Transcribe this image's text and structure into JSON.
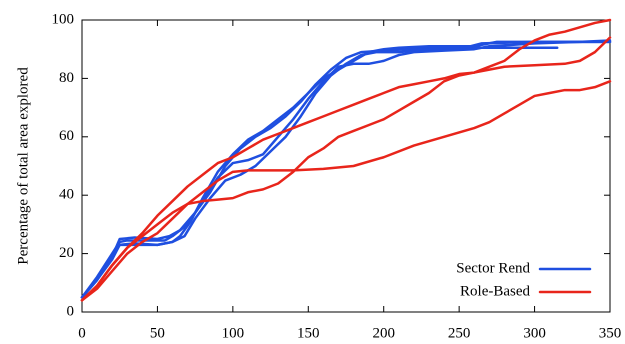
{
  "chart_data": {
    "type": "line",
    "title": "",
    "xlabel": "",
    "ylabel": "Percentage of total area explored",
    "xlim": [
      0,
      350
    ],
    "ylim": [
      0,
      100
    ],
    "xticks": [
      0,
      50,
      100,
      150,
      200,
      250,
      300,
      350
    ],
    "yticks": [
      0,
      20,
      40,
      60,
      80,
      100
    ],
    "grid": false,
    "legend_position": "bottom-right",
    "legend": [
      {
        "label": "Sector Rend",
        "color": "#1f4fe0"
      },
      {
        "label": "Role-Based",
        "color": "#e8251b"
      }
    ],
    "series": [
      {
        "group": "Sector Rend",
        "color": "#1f4fe0",
        "points": [
          [
            0,
            5
          ],
          [
            10,
            12
          ],
          [
            20,
            20
          ],
          [
            25,
            24
          ],
          [
            30,
            24.5
          ],
          [
            40,
            24.5
          ],
          [
            55,
            24.5
          ],
          [
            60,
            26
          ],
          [
            70,
            30
          ],
          [
            80,
            38
          ],
          [
            90,
            46
          ],
          [
            100,
            51
          ],
          [
            110,
            52
          ],
          [
            120,
            54
          ],
          [
            130,
            60
          ],
          [
            140,
            66
          ],
          [
            150,
            73
          ],
          [
            160,
            79
          ],
          [
            170,
            84
          ],
          [
            180,
            85
          ],
          [
            190,
            85
          ],
          [
            200,
            86
          ],
          [
            210,
            88
          ],
          [
            220,
            89
          ],
          [
            240,
            89.5
          ],
          [
            260,
            90
          ],
          [
            270,
            91
          ],
          [
            300,
            92
          ],
          [
            330,
            92.5
          ],
          [
            350,
            93
          ]
        ]
      },
      {
        "group": "Sector Rend",
        "color": "#1f4fe0",
        "points": [
          [
            0,
            5
          ],
          [
            10,
            11
          ],
          [
            20,
            19
          ],
          [
            25,
            25
          ],
          [
            35,
            25.5
          ],
          [
            50,
            25
          ],
          [
            58,
            26
          ],
          [
            65,
            28
          ],
          [
            75,
            34
          ],
          [
            85,
            41
          ],
          [
            95,
            50
          ],
          [
            105,
            56
          ],
          [
            115,
            60
          ],
          [
            125,
            63
          ],
          [
            135,
            67
          ],
          [
            145,
            72
          ],
          [
            155,
            78
          ],
          [
            165,
            83
          ],
          [
            175,
            87
          ],
          [
            185,
            89
          ],
          [
            200,
            89.5
          ],
          [
            215,
            90
          ],
          [
            240,
            90.5
          ],
          [
            270,
            90.5
          ],
          [
            300,
            90.5
          ],
          [
            315,
            90.5
          ]
        ]
      },
      {
        "group": "Sector Rend",
        "color": "#1f4fe0",
        "points": [
          [
            0,
            5
          ],
          [
            10,
            11
          ],
          [
            20,
            18
          ],
          [
            25,
            23
          ],
          [
            35,
            23.5
          ],
          [
            50,
            23
          ],
          [
            60,
            24
          ],
          [
            65,
            26
          ],
          [
            72,
            31
          ],
          [
            80,
            39
          ],
          [
            90,
            48
          ],
          [
            100,
            54
          ],
          [
            110,
            59
          ],
          [
            120,
            62
          ],
          [
            130,
            66
          ],
          [
            140,
            70
          ],
          [
            150,
            75
          ],
          [
            160,
            80
          ],
          [
            170,
            83
          ],
          [
            180,
            86
          ],
          [
            190,
            89
          ],
          [
            200,
            90
          ],
          [
            210,
            90.5
          ],
          [
            230,
            91
          ],
          [
            260,
            91
          ],
          [
            275,
            92.5
          ],
          [
            310,
            92.5
          ],
          [
            350,
            92.5
          ]
        ]
      },
      {
        "group": "Sector Rend",
        "color": "#1f4fe0",
        "points": [
          [
            0,
            5
          ],
          [
            10,
            11
          ],
          [
            20,
            19
          ],
          [
            25,
            23
          ],
          [
            35,
            23
          ],
          [
            50,
            23
          ],
          [
            60,
            24
          ],
          [
            68,
            26
          ],
          [
            75,
            32
          ],
          [
            85,
            39
          ],
          [
            95,
            45
          ],
          [
            105,
            47
          ],
          [
            115,
            50
          ],
          [
            125,
            55
          ],
          [
            135,
            60
          ],
          [
            145,
            67
          ],
          [
            155,
            75
          ],
          [
            165,
            81
          ],
          [
            175,
            85
          ],
          [
            185,
            88
          ],
          [
            195,
            89
          ],
          [
            210,
            89
          ],
          [
            230,
            90
          ],
          [
            250,
            90
          ],
          [
            265,
            92
          ],
          [
            300,
            92.5
          ],
          [
            350,
            92.5
          ]
        ]
      },
      {
        "group": "Role-Based",
        "color": "#e8251b",
        "points": [
          [
            0,
            4
          ],
          [
            10,
            8
          ],
          [
            20,
            14
          ],
          [
            30,
            20
          ],
          [
            40,
            24
          ],
          [
            50,
            27
          ],
          [
            60,
            32
          ],
          [
            70,
            37
          ],
          [
            80,
            38
          ],
          [
            90,
            38.5
          ],
          [
            100,
            39
          ],
          [
            110,
            41
          ],
          [
            120,
            42
          ],
          [
            130,
            44
          ],
          [
            140,
            48
          ],
          [
            150,
            53
          ],
          [
            160,
            56
          ],
          [
            170,
            60
          ],
          [
            180,
            62
          ],
          [
            190,
            64
          ],
          [
            200,
            66
          ],
          [
            210,
            69
          ],
          [
            220,
            72
          ],
          [
            230,
            75
          ],
          [
            240,
            79
          ],
          [
            250,
            81
          ],
          [
            260,
            82
          ],
          [
            270,
            84
          ],
          [
            280,
            86
          ],
          [
            290,
            90
          ],
          [
            300,
            93
          ],
          [
            310,
            95
          ],
          [
            320,
            96
          ],
          [
            330,
            97.5
          ],
          [
            340,
            99
          ],
          [
            350,
            100
          ]
        ]
      },
      {
        "group": "Role-Based",
        "color": "#e8251b",
        "points": [
          [
            0,
            4
          ],
          [
            10,
            9
          ],
          [
            20,
            16
          ],
          [
            30,
            22
          ],
          [
            40,
            26
          ],
          [
            50,
            30
          ],
          [
            60,
            34
          ],
          [
            70,
            37
          ],
          [
            80,
            41
          ],
          [
            90,
            45
          ],
          [
            100,
            48
          ],
          [
            110,
            48.5
          ],
          [
            120,
            48.5
          ],
          [
            140,
            48.5
          ],
          [
            160,
            49
          ],
          [
            180,
            50
          ],
          [
            200,
            53
          ],
          [
            220,
            57
          ],
          [
            240,
            60
          ],
          [
            260,
            63
          ],
          [
            270,
            65
          ],
          [
            280,
            68
          ],
          [
            290,
            71
          ],
          [
            300,
            74
          ],
          [
            310,
            75
          ],
          [
            320,
            76
          ],
          [
            330,
            76
          ],
          [
            340,
            77
          ],
          [
            350,
            79
          ]
        ]
      },
      {
        "group": "Role-Based",
        "color": "#e8251b",
        "points": [
          [
            0,
            4
          ],
          [
            10,
            9
          ],
          [
            20,
            16
          ],
          [
            30,
            22
          ],
          [
            40,
            27
          ],
          [
            50,
            33
          ],
          [
            60,
            38
          ],
          [
            70,
            43
          ],
          [
            80,
            47
          ],
          [
            90,
            51
          ],
          [
            100,
            53
          ],
          [
            110,
            56
          ],
          [
            120,
            59
          ],
          [
            130,
            61
          ],
          [
            140,
            63
          ],
          [
            150,
            65
          ],
          [
            160,
            67
          ],
          [
            170,
            69
          ],
          [
            180,
            71
          ],
          [
            190,
            73
          ],
          [
            200,
            75
          ],
          [
            210,
            77
          ],
          [
            220,
            78
          ],
          [
            230,
            79
          ],
          [
            240,
            80
          ],
          [
            250,
            81.5
          ],
          [
            260,
            82
          ],
          [
            270,
            83
          ],
          [
            280,
            84
          ],
          [
            300,
            84.5
          ],
          [
            320,
            85
          ],
          [
            330,
            86
          ],
          [
            340,
            89
          ],
          [
            350,
            94
          ]
        ]
      }
    ]
  }
}
